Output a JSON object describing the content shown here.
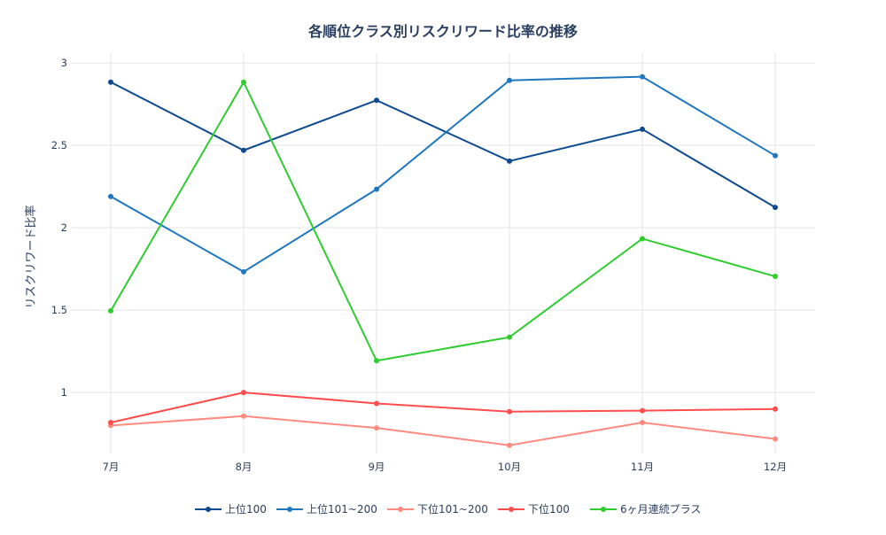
{
  "chart_data": {
    "type": "line",
    "title": "各順位クラス別リスクリワード比率の推移",
    "xlabel": "",
    "ylabel": "リスクリワード比率",
    "categories": [
      "7月",
      "8月",
      "9月",
      "10月",
      "11月",
      "12月"
    ],
    "ylim": [
      0.63,
      3.06
    ],
    "yticks": [
      1,
      1.5,
      2,
      2.5,
      3
    ],
    "ytick_labels": [
      "1",
      "1.5",
      "2",
      "2.5",
      "3"
    ],
    "grid": true,
    "legend_placement": "bottom",
    "series": [
      {
        "name": "上位100",
        "color": "#0d4a8f",
        "values": [
          2.884,
          2.47,
          2.774,
          2.405,
          2.598,
          2.124
        ]
      },
      {
        "name": "上位101~200",
        "color": "#1f77c0",
        "values": [
          2.19,
          1.733,
          2.234,
          2.895,
          2.917,
          2.438
        ]
      },
      {
        "name": "下位101~200",
        "color": "#ff8a80",
        "values": [
          0.8,
          0.857,
          0.785,
          0.68,
          0.818,
          0.719
        ]
      },
      {
        "name": "下位100",
        "color": "#ff4d4d",
        "values": [
          0.818,
          1.0,
          0.934,
          0.884,
          0.89,
          0.9
        ]
      },
      {
        "name": "6ヶ月連続プラス",
        "color": "#2ecc2e",
        "values": [
          1.496,
          2.884,
          1.193,
          1.336,
          1.934,
          1.705
        ]
      }
    ]
  }
}
